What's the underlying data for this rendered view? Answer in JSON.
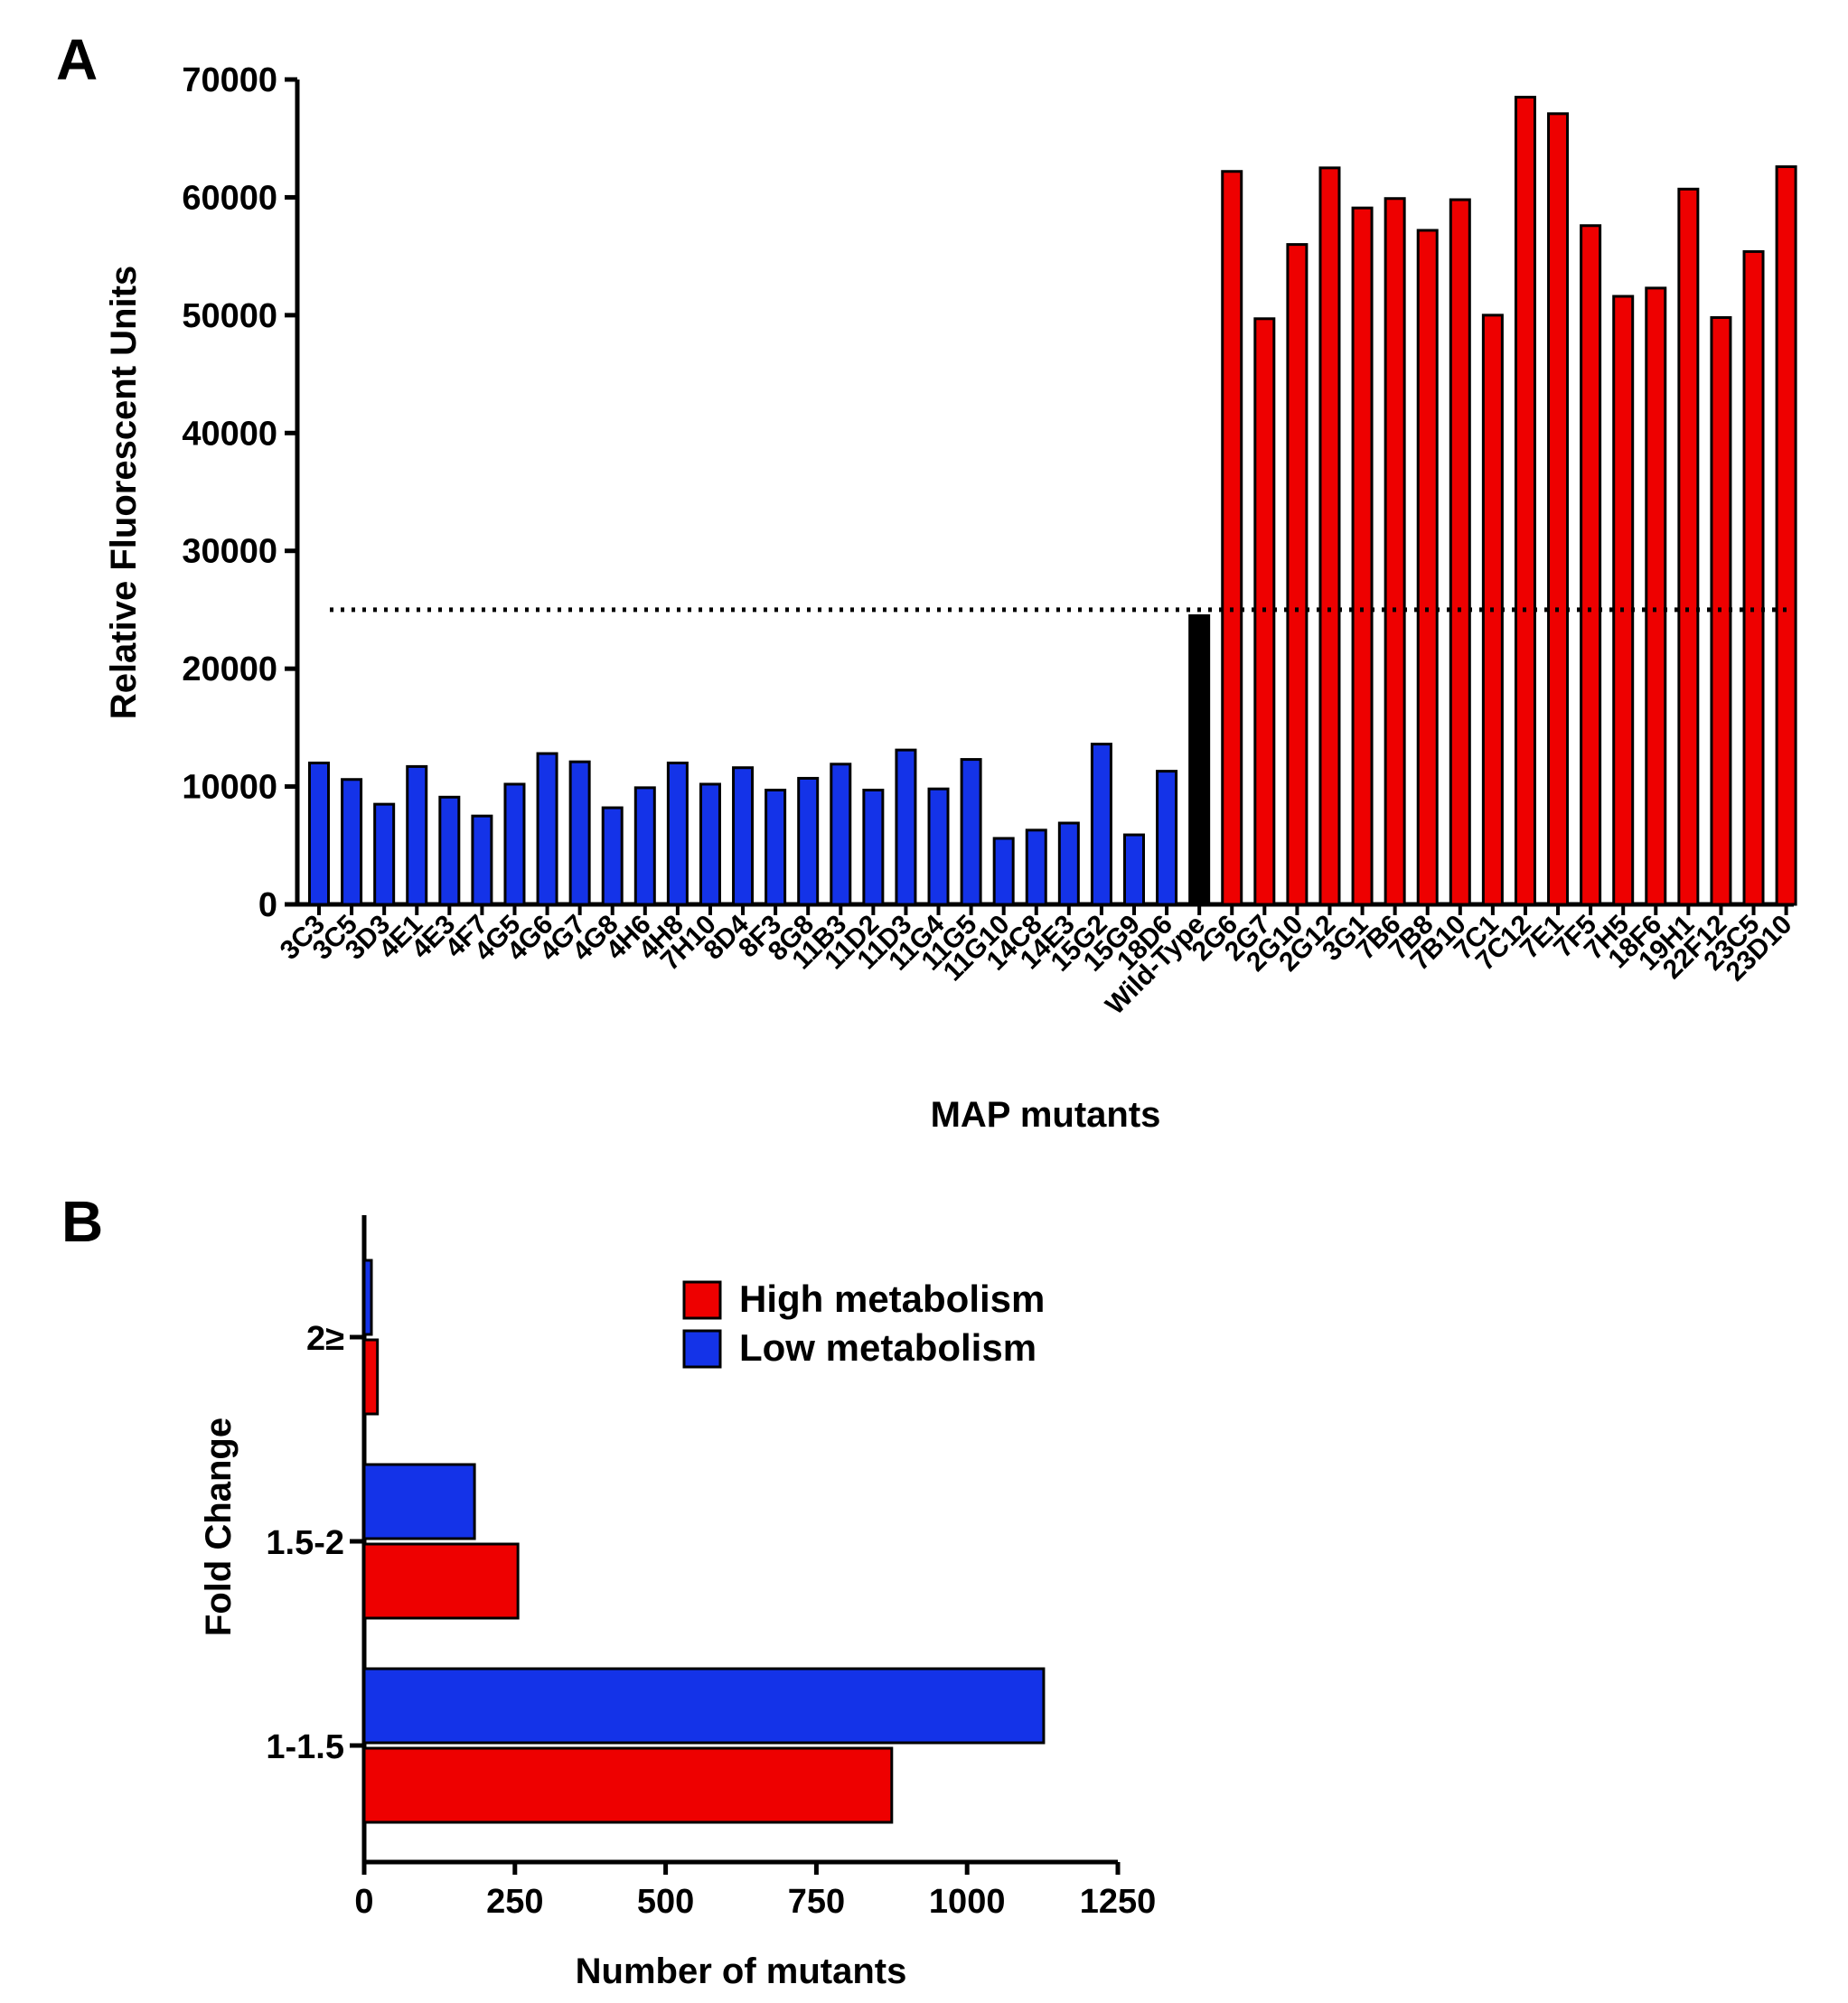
{
  "chart_data": [
    {
      "panel": "A",
      "type": "bar",
      "xlabel": "MAP mutants",
      "ylabel": "Relative Fluorescent Units",
      "ylim": [
        0,
        70000
      ],
      "yticks": [
        "0",
        "10000",
        "20000",
        "30000",
        "40000",
        "50000",
        "60000",
        "70000"
      ],
      "reference_line": {
        "value": 25000,
        "style": "dotted"
      },
      "colors": {
        "low": "#1433e8",
        "wild_type": "#000000",
        "high": "#ee0000"
      },
      "categories": [
        "3C3",
        "3C5",
        "3D3",
        "4E1",
        "4E3",
        "4F7",
        "4G5",
        "4G6",
        "4G7",
        "4G8",
        "4H6",
        "4H8",
        "7H10",
        "8D4",
        "8F3",
        "8G8",
        "11B3",
        "11D2",
        "11D3",
        "11G4",
        "11G5",
        "11G10",
        "14C8",
        "14E3",
        "15G2",
        "15G9",
        "18D6",
        "Wild-Type",
        "2G6",
        "2G7",
        "2G10",
        "2G12",
        "3G1",
        "7B6",
        "7B8",
        "7B10",
        "7C1",
        "7C12",
        "7E1",
        "7F5",
        "7H5",
        "18F6",
        "19H1",
        "22F12",
        "23C5",
        "23D10"
      ],
      "groups": [
        "low",
        "low",
        "low",
        "low",
        "low",
        "low",
        "low",
        "low",
        "low",
        "low",
        "low",
        "low",
        "low",
        "low",
        "low",
        "low",
        "low",
        "low",
        "low",
        "low",
        "low",
        "low",
        "low",
        "low",
        "low",
        "low",
        "low",
        "wild_type",
        "high",
        "high",
        "high",
        "high",
        "high",
        "high",
        "high",
        "high",
        "high",
        "high",
        "high",
        "high",
        "high",
        "high",
        "high",
        "high",
        "high",
        "high"
      ],
      "values": [
        12000,
        10600,
        8500,
        11700,
        9100,
        7500,
        10200,
        12800,
        12100,
        8200,
        9900,
        12000,
        10200,
        11600,
        9700,
        10700,
        11900,
        9700,
        13100,
        9800,
        12300,
        5600,
        6300,
        6900,
        13600,
        5900,
        11300,
        24500,
        62200,
        49700,
        56000,
        62500,
        59100,
        59900,
        57200,
        59800,
        50000,
        68500,
        67100,
        57600,
        51600,
        52300,
        60700,
        49800,
        55400,
        62600
      ]
    },
    {
      "panel": "B",
      "type": "bar",
      "orientation": "horizontal",
      "xlabel": "Number of mutants",
      "ylabel": "Fold Change",
      "xlim": [
        0,
        1250
      ],
      "xticks": [
        "0",
        "250",
        "500",
        "750",
        "1000",
        "1250"
      ],
      "categories": [
        "2≥",
        "1.5-2",
        "1-1.5"
      ],
      "series": [
        {
          "name": "High metabolism",
          "color": "#ee0000",
          "values": [
            22,
            255,
            875
          ]
        },
        {
          "name": "Low metabolism",
          "color": "#1433e8",
          "values": [
            12,
            183,
            1127
          ]
        }
      ]
    }
  ]
}
